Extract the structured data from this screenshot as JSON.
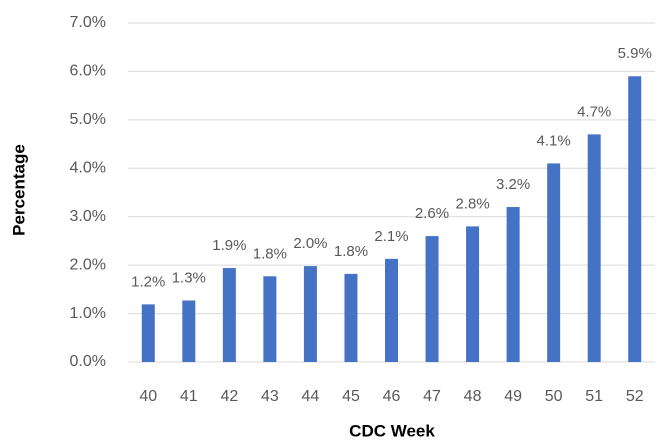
{
  "chart_data": {
    "type": "bar",
    "x_label": "CDC Week",
    "y_label": "Percentage",
    "categories": [
      "40",
      "41",
      "42",
      "43",
      "44",
      "45",
      "46",
      "47",
      "48",
      "49",
      "50",
      "51",
      "52"
    ],
    "values": [
      1.19,
      1.27,
      1.94,
      1.77,
      1.98,
      1.82,
      2.13,
      2.6,
      2.8,
      3.2,
      4.1,
      4.7,
      5.9
    ],
    "value_labels": [
      "1.2%",
      "1.3%",
      "1.9%",
      "1.8%",
      "2.0%",
      "1.8%",
      "2.1%",
      "2.6%",
      "2.8%",
      "3.2%",
      "4.1%",
      "4.7%",
      "5.9%"
    ],
    "color": "#4472c4",
    "ylim": [
      0,
      7
    ],
    "yticks": [
      {
        "value": 0,
        "label": "0.0%"
      },
      {
        "value": 1,
        "label": "1.0%"
      },
      {
        "value": 2,
        "label": "2.0%"
      },
      {
        "value": 3,
        "label": "3.0%"
      },
      {
        "value": 4,
        "label": "4.0%"
      },
      {
        "value": 5,
        "label": "5.0%"
      },
      {
        "value": 6,
        "label": "6.0%"
      },
      {
        "value": 7,
        "label": "7.0%"
      }
    ],
    "grid": true
  }
}
